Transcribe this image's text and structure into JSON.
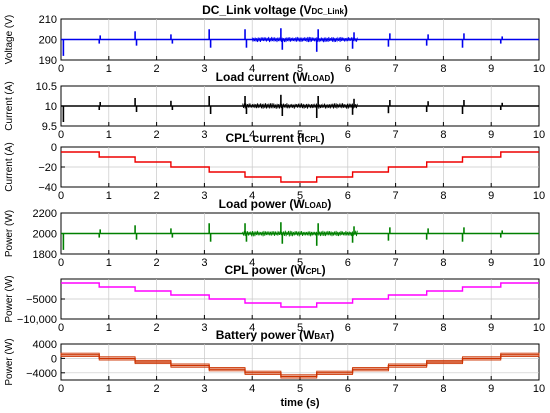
{
  "chart_data": [
    {
      "type": "line",
      "title": "DC_Link voltage (V",
      "title_sub": "DC_Link",
      "title_end": ")",
      "ylabel": "Voltage (V)",
      "xlabel": "",
      "xlim": [
        0,
        10
      ],
      "ylim": [
        190,
        210
      ],
      "yticks": [
        190,
        200,
        210
      ],
      "ytick_labels": [
        "190",
        "200",
        "210"
      ],
      "xticks": [
        0,
        1,
        2,
        3,
        4,
        5,
        6,
        7,
        8,
        9,
        10
      ],
      "xtick_labels": [
        "0",
        "1",
        "2",
        "3",
        "4",
        "5",
        "6",
        "7",
        "8",
        "9",
        "10"
      ],
      "grid": true,
      "color": "#0000ee",
      "baseline": 200,
      "segments": [
        {
          "x": 0,
          "y": 200
        }
      ],
      "spikes": [
        [
          0.05,
          -8
        ],
        [
          0.8,
          -2
        ],
        [
          0.82,
          2
        ],
        [
          1.55,
          4
        ],
        [
          1.58,
          -3
        ],
        [
          2.3,
          2.5
        ],
        [
          2.33,
          -2
        ],
        [
          3.1,
          5
        ],
        [
          3.13,
          -4
        ],
        [
          3.85,
          5
        ],
        [
          3.88,
          -4
        ],
        [
          4.6,
          5.5
        ],
        [
          4.63,
          -5
        ],
        [
          5.35,
          -6
        ],
        [
          5.38,
          5
        ],
        [
          6.1,
          -4.5
        ],
        [
          6.13,
          3.5
        ],
        [
          6.85,
          -3.5
        ],
        [
          6.88,
          3
        ],
        [
          7.65,
          -3
        ],
        [
          7.68,
          2.5
        ],
        [
          8.4,
          -4
        ],
        [
          8.43,
          3
        ],
        [
          9.2,
          -2
        ],
        [
          9.23,
          1.5
        ]
      ],
      "noise_regions": [
        [
          4.0,
          6.2,
          1.3
        ]
      ]
    },
    {
      "type": "line",
      "title": "Load current (W",
      "title_sub": "LOAD",
      "title_end": ")",
      "ylabel": "Current (A)",
      "xlabel": "",
      "xlim": [
        0,
        10
      ],
      "ylim": [
        9.5,
        10.5
      ],
      "yticks": [
        9.5,
        10,
        10.5
      ],
      "ytick_labels": [
        "9.5",
        "10",
        "10.5"
      ],
      "xticks": [
        0,
        1,
        2,
        3,
        4,
        5,
        6,
        7,
        8,
        9,
        10
      ],
      "xtick_labels": [
        "0",
        "1",
        "2",
        "3",
        "4",
        "5",
        "6",
        "7",
        "8",
        "9",
        "10"
      ],
      "grid": true,
      "color": "#000000",
      "baseline": 10,
      "segments": [
        {
          "x": 0,
          "y": 10
        }
      ],
      "spikes": [
        [
          0.05,
          -0.4
        ],
        [
          0.8,
          -0.1
        ],
        [
          0.82,
          0.1
        ],
        [
          1.55,
          0.2
        ],
        [
          1.58,
          -0.15
        ],
        [
          2.3,
          0.13
        ],
        [
          2.33,
          -0.1
        ],
        [
          3.1,
          0.25
        ],
        [
          3.13,
          -0.2
        ],
        [
          3.85,
          0.25
        ],
        [
          3.88,
          -0.2
        ],
        [
          4.6,
          0.28
        ],
        [
          4.63,
          -0.25
        ],
        [
          5.35,
          -0.3
        ],
        [
          5.38,
          0.25
        ],
        [
          6.1,
          -0.22
        ],
        [
          6.13,
          0.18
        ],
        [
          6.85,
          -0.18
        ],
        [
          6.88,
          0.15
        ],
        [
          7.65,
          -0.15
        ],
        [
          7.68,
          0.12
        ],
        [
          8.4,
          -0.2
        ],
        [
          8.43,
          0.15
        ],
        [
          9.2,
          -0.1
        ],
        [
          9.23,
          0.08
        ]
      ],
      "noise_regions": [
        [
          3.8,
          6.2,
          0.07
        ]
      ]
    },
    {
      "type": "line",
      "title": "CPL current (I",
      "title_sub": "CPL",
      "title_end": ")",
      "ylabel": "Current (A)",
      "xlabel": "",
      "xlim": [
        0,
        10
      ],
      "ylim": [
        -40,
        0
      ],
      "yticks": [
        -40,
        -20,
        0
      ],
      "ytick_labels": [
        "−40",
        "−20",
        "0"
      ],
      "xticks": [
        0,
        1,
        2,
        3,
        4,
        5,
        6,
        7,
        8,
        9,
        10
      ],
      "xtick_labels": [
        "0",
        "1",
        "2",
        "3",
        "4",
        "5",
        "6",
        "7",
        "8",
        "9",
        "10"
      ],
      "grid": true,
      "color": "#ee0000",
      "segments": [
        {
          "x": 0,
          "y": -5
        },
        {
          "x": 0.8,
          "y": -10
        },
        {
          "x": 1.55,
          "y": -15
        },
        {
          "x": 2.3,
          "y": -20
        },
        {
          "x": 3.1,
          "y": -25
        },
        {
          "x": 3.85,
          "y": -30
        },
        {
          "x": 4.6,
          "y": -35
        },
        {
          "x": 5.35,
          "y": -30
        },
        {
          "x": 6.1,
          "y": -25
        },
        {
          "x": 6.85,
          "y": -20
        },
        {
          "x": 7.65,
          "y": -15
        },
        {
          "x": 8.4,
          "y": -10
        },
        {
          "x": 9.2,
          "y": -5
        }
      ],
      "spikes": [],
      "noise_regions": []
    },
    {
      "type": "line",
      "title": "Load power (W",
      "title_sub": "LOAD",
      "title_end": ")",
      "ylabel": "Power (W)",
      "xlabel": "",
      "xlim": [
        0,
        10
      ],
      "ylim": [
        1800,
        2200
      ],
      "yticks": [
        1800,
        2000,
        2200
      ],
      "ytick_labels": [
        "1800",
        "2000",
        "2200"
      ],
      "xticks": [
        0,
        1,
        2,
        3,
        4,
        5,
        6,
        7,
        8,
        9,
        10
      ],
      "xtick_labels": [
        "0",
        "1",
        "2",
        "3",
        "4",
        "5",
        "6",
        "7",
        "8",
        "9",
        "10"
      ],
      "grid": true,
      "color": "#008000",
      "baseline": 2000,
      "segments": [
        {
          "x": 0,
          "y": 2000
        }
      ],
      "spikes": [
        [
          0.05,
          -160
        ],
        [
          0.8,
          -40
        ],
        [
          0.82,
          40
        ],
        [
          1.55,
          80
        ],
        [
          1.58,
          -60
        ],
        [
          2.3,
          50
        ],
        [
          2.33,
          -40
        ],
        [
          3.1,
          100
        ],
        [
          3.13,
          -80
        ],
        [
          3.85,
          100
        ],
        [
          3.88,
          -80
        ],
        [
          4.6,
          110
        ],
        [
          4.63,
          -100
        ],
        [
          5.35,
          -120
        ],
        [
          5.38,
          100
        ],
        [
          6.1,
          -90
        ],
        [
          6.13,
          70
        ],
        [
          6.85,
          -70
        ],
        [
          6.88,
          60
        ],
        [
          7.65,
          -60
        ],
        [
          7.68,
          50
        ],
        [
          8.4,
          -80
        ],
        [
          8.43,
          60
        ],
        [
          9.2,
          -40
        ],
        [
          9.23,
          30
        ]
      ],
      "noise_regions": [
        [
          3.8,
          6.2,
          28
        ]
      ]
    },
    {
      "type": "line",
      "title": "CPL power (W",
      "title_sub": "CPL",
      "title_end": ")",
      "ylabel": "Power (W)",
      "xlabel": "",
      "xlim": [
        0,
        10
      ],
      "ylim": [
        -10000,
        0
      ],
      "yticks": [
        -10000,
        -5000
      ],
      "ytick_labels": [
        "−10,000",
        "−5000"
      ],
      "xticks": [
        0,
        1,
        2,
        3,
        4,
        5,
        6,
        7,
        8,
        9,
        10
      ],
      "xtick_labels": [
        "0",
        "1",
        "2",
        "3",
        "4",
        "5",
        "6",
        "7",
        "8",
        "9",
        "10"
      ],
      "grid": true,
      "color": "#ff00ff",
      "segments": [
        {
          "x": 0,
          "y": -1000
        },
        {
          "x": 0.8,
          "y": -2000
        },
        {
          "x": 1.55,
          "y": -3000
        },
        {
          "x": 2.3,
          "y": -4000
        },
        {
          "x": 3.1,
          "y": -5000
        },
        {
          "x": 3.85,
          "y": -6000
        },
        {
          "x": 4.6,
          "y": -7000
        },
        {
          "x": 5.35,
          "y": -6000
        },
        {
          "x": 6.1,
          "y": -5000
        },
        {
          "x": 6.85,
          "y": -4000
        },
        {
          "x": 7.65,
          "y": -3000
        },
        {
          "x": 8.4,
          "y": -2000
        },
        {
          "x": 9.2,
          "y": -1000
        }
      ],
      "spikes": [],
      "noise_regions": []
    },
    {
      "type": "line",
      "title": "Battery power (W",
      "title_sub": "BAT",
      "title_end": ")",
      "ylabel": "Power (W)",
      "xlabel": "time (s)",
      "xlim": [
        0,
        10
      ],
      "ylim": [
        -6000,
        4000
      ],
      "yticks": [
        -4000,
        0,
        4000
      ],
      "ytick_labels": [
        "−4000",
        "0",
        "4000"
      ],
      "xticks": [
        0,
        1,
        2,
        3,
        4,
        5,
        6,
        7,
        8,
        9,
        10
      ],
      "xtick_labels": [
        "0",
        "1",
        "2",
        "3",
        "4",
        "5",
        "6",
        "7",
        "8",
        "9",
        "10"
      ],
      "grid": true,
      "color": "#cc3300",
      "segments": [
        {
          "x": 0,
          "y": 1000
        },
        {
          "x": 0.8,
          "y": 0
        },
        {
          "x": 1.55,
          "y": -1000
        },
        {
          "x": 2.3,
          "y": -2000
        },
        {
          "x": 3.1,
          "y": -3000
        },
        {
          "x": 3.85,
          "y": -4000
        },
        {
          "x": 4.6,
          "y": -5000
        },
        {
          "x": 5.35,
          "y": -4000
        },
        {
          "x": 6.1,
          "y": -3000
        },
        {
          "x": 6.85,
          "y": -2000
        },
        {
          "x": 7.65,
          "y": -1000
        },
        {
          "x": 8.4,
          "y": 0
        },
        {
          "x": 9.2,
          "y": 1000
        }
      ],
      "spikes": [],
      "noise_regions": [],
      "band": 450
    }
  ]
}
